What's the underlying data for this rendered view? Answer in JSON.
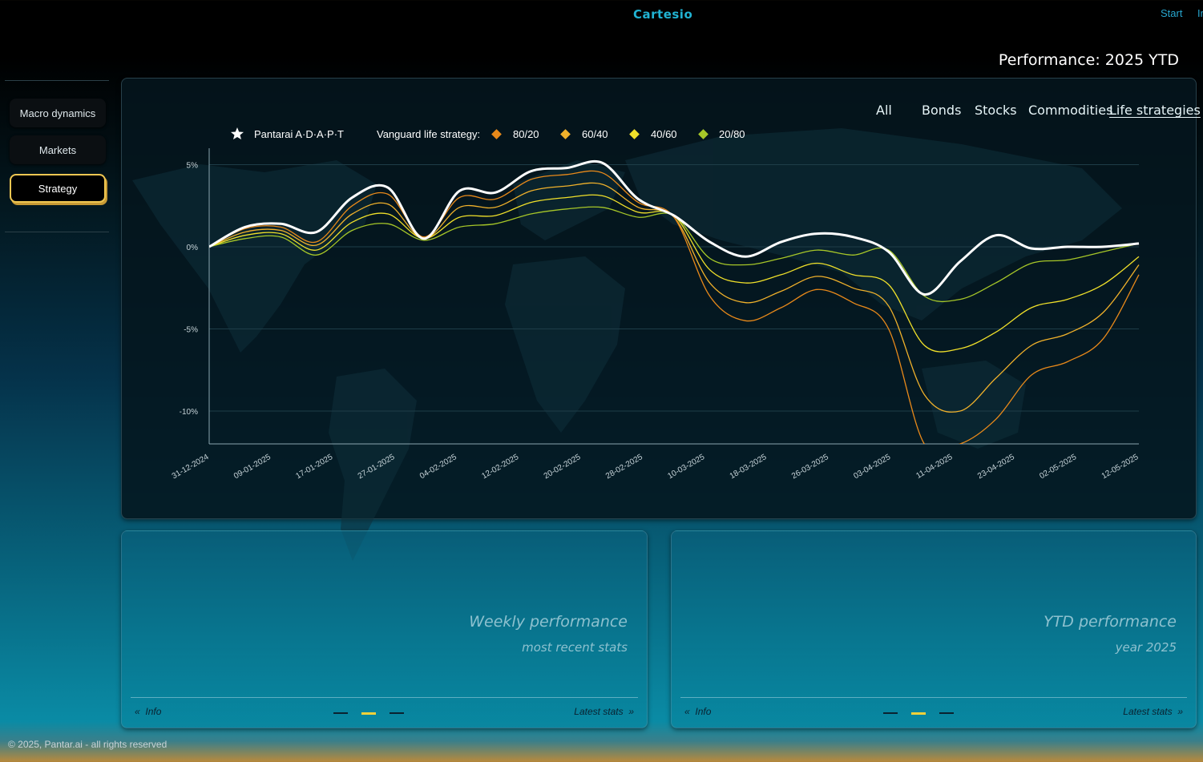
{
  "header": {
    "brand": "Cartesio",
    "nav": [
      "Start",
      "Ir"
    ],
    "page_title": "Performance: 2025 YTD"
  },
  "sidebar": {
    "items": [
      {
        "label": "Macro dynamics",
        "active": false
      },
      {
        "label": "Markets",
        "active": false
      },
      {
        "label": "Strategy",
        "active": true
      }
    ]
  },
  "filters": {
    "items": [
      {
        "label": "All",
        "active": false
      },
      {
        "label": "Bonds",
        "active": false
      },
      {
        "label": "Stocks",
        "active": false
      },
      {
        "label": "Commodities",
        "active": false
      },
      {
        "label": "Life strategies",
        "active": true
      }
    ]
  },
  "legend": {
    "adapt_label": "Pantarai A·D·A·P·T",
    "group_label": "Vanguard life strategy:",
    "items": [
      "80/20",
      "60/40",
      "40/60",
      "20/80"
    ]
  },
  "colors": {
    "accent": "#f2c94c",
    "brand": "#21b3d3",
    "adapt": "#ffffff",
    "s8020": "#e8891a",
    "s6040": "#f0b12b",
    "s4060": "#f0e02a",
    "s2080": "#a6c628"
  },
  "chart_data": {
    "type": "line",
    "title": "",
    "xlabel": "",
    "ylabel": "",
    "ylim": [
      -12,
      6
    ],
    "y_ticks": [
      "5%",
      "0%",
      "-5%",
      "-10%"
    ],
    "y_tick_values": [
      5,
      0,
      -5,
      -10
    ],
    "x_ticks": [
      "31-12-2024",
      "09-01-2025",
      "17-01-2025",
      "27-01-2025",
      "04-02-2025",
      "12-02-2025",
      "20-02-2025",
      "28-02-2025",
      "10-03-2025",
      "18-03-2025",
      "26-03-2025",
      "03-04-2025",
      "11-04-2025",
      "23-04-2025",
      "02-05-2025",
      "12-05-2025"
    ],
    "grid": true,
    "legend_position": "top-left",
    "series": [
      {
        "name": "Pantarai A·D·A·P·T",
        "values": [
          0,
          1.2,
          1.4,
          0.9,
          3.0,
          3.6,
          0.5,
          3.4,
          3.3,
          4.6,
          4.8,
          5.1,
          2.9,
          1.9,
          0.3,
          -0.6,
          0.3,
          0.8,
          0.6,
          -0.3,
          -2.9,
          -0.9,
          0.7,
          -0.1,
          0.0,
          0.0,
          0.2
        ]
      },
      {
        "name": "80/20",
        "values": [
          0,
          1.1,
          1.2,
          0.3,
          2.5,
          3.2,
          0.6,
          3.0,
          2.9,
          4.1,
          4.4,
          4.5,
          2.7,
          1.8,
          -3.0,
          -4.5,
          -3.7,
          -2.6,
          -3.4,
          -5.0,
          -12.0,
          -12.0,
          -10.5,
          -7.8,
          -7.0,
          -5.6,
          -1.7
        ]
      },
      {
        "name": "60/40",
        "values": [
          0,
          0.9,
          1.0,
          0.1,
          2.0,
          2.6,
          0.5,
          2.4,
          2.4,
          3.4,
          3.7,
          3.8,
          2.4,
          1.8,
          -2.2,
          -3.4,
          -2.7,
          -1.8,
          -2.5,
          -3.6,
          -9.0,
          -10.0,
          -8.0,
          -6.0,
          -5.3,
          -4.0,
          -1.1
        ]
      },
      {
        "name": "40/60",
        "values": [
          0,
          0.7,
          0.8,
          -0.2,
          1.5,
          2.0,
          0.5,
          1.8,
          1.9,
          2.7,
          3.0,
          3.1,
          2.1,
          1.9,
          -1.4,
          -2.2,
          -1.7,
          -1.0,
          -1.7,
          -2.3,
          -6.0,
          -6.2,
          -5.2,
          -3.7,
          -3.2,
          -2.3,
          -0.6
        ]
      },
      {
        "name": "20/80",
        "values": [
          0,
          0.5,
          0.6,
          -0.5,
          1.0,
          1.4,
          0.4,
          1.2,
          1.4,
          2.0,
          2.3,
          2.4,
          1.8,
          1.9,
          -0.7,
          -1.1,
          -0.7,
          -0.2,
          -0.5,
          -0.2,
          -3.0,
          -3.2,
          -2.2,
          -1.0,
          -0.8,
          -0.3,
          0.2
        ]
      }
    ]
  },
  "cards": {
    "weekly": {
      "title": "Weekly performance",
      "subtitle": "most recent stats",
      "info": "Info",
      "latest": "Latest stats"
    },
    "ytd": {
      "title": "YTD performance",
      "subtitle": "year 2025",
      "info": "Info",
      "latest": "Latest stats"
    }
  },
  "footer": {
    "copyright": "© 2025, Pantar.ai - all rights reserved"
  }
}
